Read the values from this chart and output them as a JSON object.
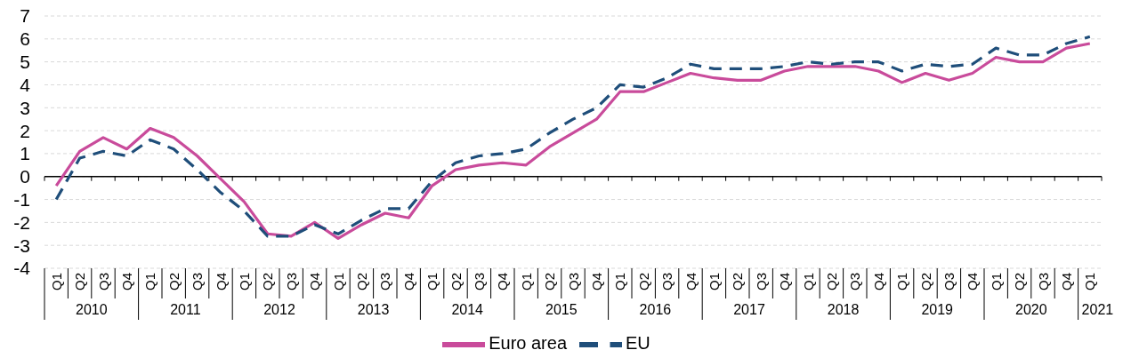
{
  "chart_data": {
    "type": "line",
    "categories": [
      "Q1",
      "Q2",
      "Q3",
      "Q4",
      "Q1",
      "Q2",
      "Q3",
      "Q4",
      "Q1",
      "Q2",
      "Q3",
      "Q4",
      "Q1",
      "Q2",
      "Q3",
      "Q4",
      "Q1",
      "Q2",
      "Q3",
      "Q4",
      "Q1",
      "Q2",
      "Q3",
      "Q4",
      "Q1",
      "Q2",
      "Q3",
      "Q4",
      "Q1",
      "Q2",
      "Q3",
      "Q4",
      "Q1",
      "Q2",
      "Q3",
      "Q4",
      "Q1",
      "Q2",
      "Q3",
      "Q4",
      "Q1",
      "Q2",
      "Q3",
      "Q4",
      "Q1"
    ],
    "annotations": [
      "2010",
      "2011",
      "2012",
      "2013",
      "2014",
      "2015",
      "2016",
      "2017",
      "2018",
      "2019",
      "2020",
      "2021"
    ],
    "series": [
      {
        "name": "Euro area",
        "color": "#c94b9b",
        "line_style": "solid",
        "values": [
          -0.4,
          1.1,
          1.7,
          1.2,
          2.1,
          1.7,
          0.9,
          -0.1,
          -1.1,
          -2.5,
          -2.6,
          -2.0,
          -2.7,
          -2.1,
          -1.6,
          -1.8,
          -0.4,
          0.3,
          0.5,
          0.6,
          0.5,
          1.3,
          1.9,
          2.5,
          3.7,
          3.7,
          4.1,
          4.5,
          4.3,
          4.2,
          4.2,
          4.6,
          4.8,
          4.8,
          4.8,
          4.6,
          4.1,
          4.5,
          4.2,
          4.5,
          5.2,
          5.0,
          5.0,
          5.6,
          5.8
        ]
      },
      {
        "name": "EU",
        "color": "#1f4e7a",
        "line_style": "dashed",
        "values": [
          -1.0,
          0.8,
          1.1,
          0.9,
          1.6,
          1.2,
          0.3,
          -0.7,
          -1.5,
          -2.6,
          -2.6,
          -2.1,
          -2.5,
          -1.9,
          -1.4,
          -1.4,
          -0.2,
          0.6,
          0.9,
          1.0,
          1.2,
          1.9,
          2.5,
          3.0,
          4.0,
          3.9,
          4.3,
          4.9,
          4.7,
          4.7,
          4.7,
          4.8,
          5.0,
          4.9,
          5.0,
          5.0,
          4.6,
          4.9,
          4.8,
          4.9,
          5.6,
          5.3,
          5.3,
          5.8,
          6.1
        ]
      }
    ],
    "ylim": [
      -4,
      7
    ],
    "yticks": [
      -4,
      -3,
      -2,
      -1,
      0,
      1,
      2,
      3,
      4,
      5,
      6,
      7
    ],
    "grid": "y",
    "legend": "bottom",
    "marker": "none",
    "ref_lines": [
      {
        "axis": "y",
        "value": 0,
        "color": "#000000"
      }
    ]
  }
}
